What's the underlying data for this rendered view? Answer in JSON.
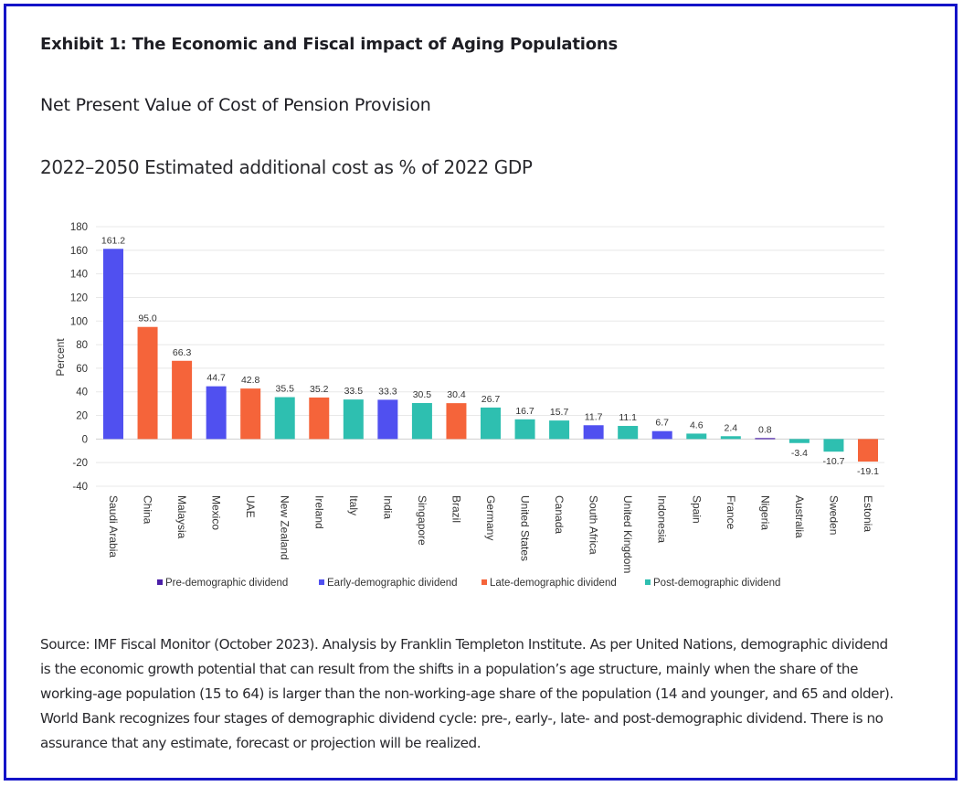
{
  "exhibit_title": "Exhibit 1: The Economic and Fiscal impact of Aging Populations",
  "chart_title": "Net Present Value of Cost of Pension Provision",
  "chart_subtitle": "2022–2050 Estimated additional cost as % of 2022 GDP",
  "source_note": "Source: IMF Fiscal Monitor (October 2023). Analysis by Franklin Templeton Institute. As per United Nations, demographic dividend is the economic growth potential that can result from the shifts in a population’s age structure, mainly when the share of the working-age population (15 to 64) is larger than the non-working-age share of the population (14 and younger, and 65 and older). World Bank recognizes four stages of demographic dividend cycle: pre-, early-, late- and post-demographic dividend. There is no assurance that any estimate, forecast or projection will be realized.",
  "colors": {
    "pre": "#4b1fa8",
    "early": "#5050f0",
    "late": "#f5643a",
    "post": "#2ebfb0",
    "border": "#1414c8"
  },
  "chart_data": {
    "type": "bar",
    "title": "Net Present Value of Cost of Pension Provision",
    "subtitle": "2022–2050 Estimated additional cost as % of 2022 GDP",
    "xlabel": "",
    "ylabel": "Percent",
    "ylim": [
      -40,
      180
    ],
    "yticks": [
      -40,
      -20,
      0,
      20,
      40,
      60,
      80,
      100,
      120,
      140,
      160,
      180
    ],
    "grid": true,
    "legend_position": "bottom",
    "legend": [
      {
        "key": "pre",
        "label": "Pre-demographic dividend"
      },
      {
        "key": "early",
        "label": "Early-demographic dividend"
      },
      {
        "key": "late",
        "label": "Late-demographic dividend"
      },
      {
        "key": "post",
        "label": "Post-demographic dividend"
      }
    ],
    "categories": [
      "Saudi Arabia",
      "China",
      "Malaysia",
      "Mexico",
      "UAE",
      "New Zealand",
      "Ireland",
      "Italy",
      "India",
      "Singapore",
      "Brazil",
      "Germany",
      "United States",
      "Canada",
      "South Africa",
      "United Kingdom",
      "Indonesia",
      "Spain",
      "France",
      "Nigeria",
      "Australia",
      "Sweden",
      "Estonia"
    ],
    "values": [
      161.2,
      95.0,
      66.3,
      44.7,
      42.8,
      35.5,
      35.2,
      33.5,
      33.3,
      30.5,
      30.4,
      26.7,
      16.7,
      15.7,
      11.7,
      11.1,
      6.7,
      4.6,
      2.4,
      0.8,
      -3.4,
      -10.7,
      -19.1
    ],
    "labels": [
      "161.2",
      "95.0",
      "66.3",
      "44.7",
      "42.8",
      "35.5",
      "35.2",
      "33.5",
      "33.3",
      "30.5",
      "30.4",
      "26.7",
      "16.7",
      "15.7",
      "11.7",
      "11.1",
      "6.7",
      "4.6",
      "2.4",
      "0.8",
      "-3.4",
      "-10.7",
      "-19.1"
    ],
    "groups": [
      "early",
      "late",
      "late",
      "early",
      "late",
      "post",
      "late",
      "post",
      "early",
      "post",
      "late",
      "post",
      "post",
      "post",
      "early",
      "post",
      "early",
      "post",
      "post",
      "pre",
      "post",
      "post",
      "late"
    ]
  }
}
